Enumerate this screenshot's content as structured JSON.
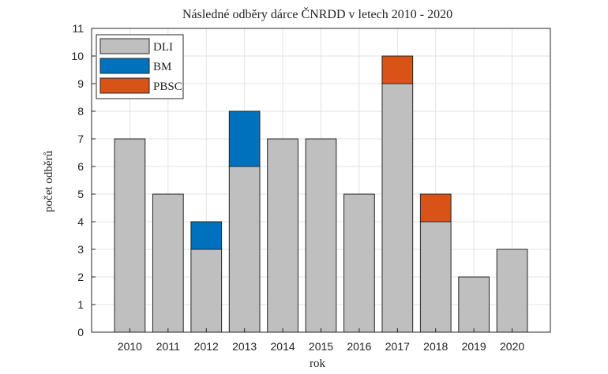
{
  "chart_data": {
    "type": "bar",
    "stacked": true,
    "title": "Následné odběry dárce ČNRDD v letech 2010 - 2020",
    "xlabel": "rok",
    "ylabel": "počet odběrů",
    "categories": [
      "2010",
      "2011",
      "2012",
      "2013",
      "2014",
      "2015",
      "2016",
      "2017",
      "2018",
      "2019",
      "2020"
    ],
    "series": [
      {
        "name": "DLI",
        "color": "#bfbfbf",
        "values": [
          7,
          5,
          3,
          6,
          7,
          7,
          5,
          9,
          4,
          2,
          3
        ]
      },
      {
        "name": "BM",
        "color": "#0072bd",
        "values": [
          0,
          0,
          1,
          2,
          0,
          0,
          0,
          0,
          0,
          0,
          0
        ]
      },
      {
        "name": "PBSC",
        "color": "#d95319",
        "values": [
          0,
          0,
          0,
          0,
          0,
          0,
          0,
          1,
          1,
          0,
          0
        ]
      }
    ],
    "ylim": [
      0,
      11
    ],
    "yticks": [
      0,
      1,
      2,
      3,
      4,
      5,
      6,
      7,
      8,
      9,
      10,
      11
    ],
    "grid": true,
    "legend": "top-left"
  }
}
